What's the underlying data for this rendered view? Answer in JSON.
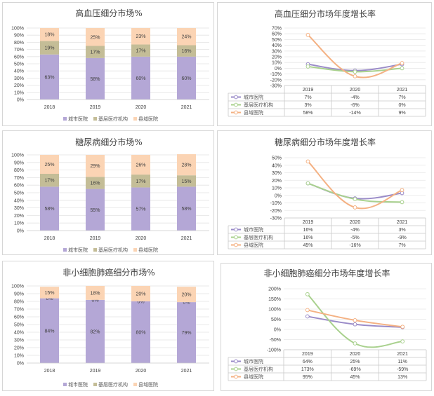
{
  "colors": {
    "city": "#b4a7d6",
    "basic": "#c4bd97",
    "county": "#fbd4b4",
    "city_line": "#9a8bc8",
    "basic_line": "#a9d18e",
    "county_line": "#f4b183"
  },
  "chart_data": [
    {
      "type": "bar",
      "stacked": true,
      "title": "高血压细分市场%",
      "categories": [
        "2018",
        "2019",
        "2020",
        "2021"
      ],
      "yticks": [
        "100%",
        "90%",
        "80%",
        "70%",
        "60%",
        "50%",
        "40%",
        "30%",
        "20%",
        "10%",
        "0%"
      ],
      "ylim": [
        0,
        100
      ],
      "series": [
        {
          "name": "城市医院",
          "values": [
            63,
            58,
            60,
            60
          ],
          "labels": [
            "63%",
            "58%",
            "60%",
            "60%"
          ]
        },
        {
          "name": "基层医疗机构",
          "values": [
            19,
            17,
            17,
            16
          ],
          "labels": [
            "19%",
            "17%",
            "17%",
            "16%"
          ]
        },
        {
          "name": "县域医院",
          "values": [
            18,
            25,
            23,
            24
          ],
          "labels": [
            "18%",
            "25%",
            "23%",
            "24%"
          ]
        }
      ]
    },
    {
      "type": "line",
      "title": "高血压细分市场年度增长率",
      "categories": [
        "2019",
        "2020",
        "2021"
      ],
      "yticks": [
        "70%",
        "60%",
        "50%",
        "40%",
        "30%",
        "20%",
        "10%",
        "0%",
        "-10%",
        "-20%",
        "-30%"
      ],
      "ylim": [
        -30,
        70
      ],
      "series": [
        {
          "name": "城市医院",
          "values": [
            7,
            -4,
            7
          ],
          "labels": [
            "7%",
            "-4%",
            "7%"
          ]
        },
        {
          "name": "基层医疗机构",
          "values": [
            3,
            -6,
            0
          ],
          "labels": [
            "3%",
            "-6%",
            "0%"
          ]
        },
        {
          "name": "县域医院",
          "values": [
            58,
            -14,
            9
          ],
          "labels": [
            "58%",
            "-14%",
            "9%"
          ]
        }
      ]
    },
    {
      "type": "bar",
      "stacked": true,
      "title": "糖尿病细分市场%",
      "categories": [
        "2018",
        "2019",
        "2020",
        "2021"
      ],
      "yticks": [
        "100%",
        "90%",
        "80%",
        "70%",
        "60%",
        "50%",
        "40%",
        "30%",
        "20%",
        "10%",
        "0%"
      ],
      "ylim": [
        0,
        100
      ],
      "series": [
        {
          "name": "城市医院",
          "values": [
            58,
            55,
            57,
            58
          ],
          "labels": [
            "58%",
            "55%",
            "57%",
            "58%"
          ]
        },
        {
          "name": "基层医疗机构",
          "values": [
            17,
            16,
            17,
            15
          ],
          "labels": [
            "17%",
            "16%",
            "17%",
            "15%"
          ]
        },
        {
          "name": "县域医院",
          "values": [
            25,
            29,
            26,
            28
          ],
          "labels": [
            "25%",
            "29%",
            "26%",
            "28%"
          ]
        }
      ]
    },
    {
      "type": "line",
      "title": "糖尿病细分市场年度增长率",
      "categories": [
        "2019",
        "2020",
        "2021"
      ],
      "yticks": [
        "50%",
        "40%",
        "30%",
        "20%",
        "10%",
        "0%",
        "-10%",
        "-20%",
        "-30%"
      ],
      "ylim": [
        -30,
        50
      ],
      "series": [
        {
          "name": "城市医院",
          "values": [
            16,
            -4,
            3
          ],
          "labels": [
            "16%",
            "-4%",
            "3%"
          ]
        },
        {
          "name": "基层医疗机构",
          "values": [
            16,
            -5,
            -9
          ],
          "labels": [
            "16%",
            "-5%",
            "-9%"
          ]
        },
        {
          "name": "县域医院",
          "values": [
            45,
            -16,
            7
          ],
          "labels": [
            "45%",
            "-16%",
            "7%"
          ]
        }
      ]
    },
    {
      "type": "bar",
      "stacked": true,
      "title": "非小细胞肺癌细分市场%",
      "categories": [
        "2018",
        "2019",
        "2020",
        "2021"
      ],
      "yticks": [
        "100%",
        "90%",
        "80%",
        "70%",
        "60%",
        "50%",
        "40%",
        "30%",
        "20%",
        "10%",
        "0%"
      ],
      "ylim": [
        0,
        100
      ],
      "series": [
        {
          "name": "城市医院",
          "values": [
            84,
            82,
            80,
            79
          ],
          "labels": [
            "84%",
            "82%",
            "80%",
            "79%"
          ]
        },
        {
          "name": "基层医疗机构",
          "values": [
            0,
            0,
            0,
            0
          ],
          "labels": [
            "0%",
            "0%",
            "0%",
            "0%"
          ]
        },
        {
          "name": "县域医院",
          "values": [
            15,
            18,
            20,
            20
          ],
          "labels": [
            "15%",
            "18%",
            "20%",
            "20%"
          ]
        }
      ]
    },
    {
      "type": "line",
      "title": "非小细胞肺癌细分市场年度增长率",
      "categories": [
        "2019",
        "2020",
        "2021"
      ],
      "yticks": [
        "200%",
        "150%",
        "100%",
        "50%",
        "0%",
        "-50%",
        "-100%"
      ],
      "ylim": [
        -100,
        200
      ],
      "series": [
        {
          "name": "城市医院",
          "values": [
            64,
            25,
            11
          ],
          "labels": [
            "64%",
            "25%",
            "11%"
          ]
        },
        {
          "name": "基层医疗机构",
          "values": [
            173,
            -69,
            -59
          ],
          "labels": [
            "173%",
            "-69%",
            "-59%"
          ]
        },
        {
          "name": "县域医院",
          "values": [
            95,
            45,
            13
          ],
          "labels": [
            "95%",
            "45%",
            "13%"
          ]
        }
      ]
    }
  ]
}
